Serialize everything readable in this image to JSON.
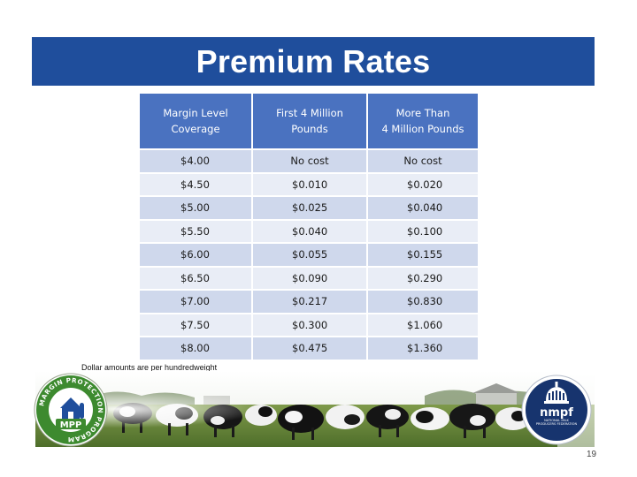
{
  "slide": {
    "title": "Premium Rates",
    "note": "Dollar amounts are per hundredweight",
    "page_number": "19"
  },
  "table": {
    "headers": [
      [
        "Margin Level",
        "Coverage"
      ],
      [
        "First 4 Million",
        "Pounds"
      ],
      [
        "More Than",
        "4 Million Pounds"
      ]
    ],
    "rows": [
      [
        "$4.00",
        "No cost",
        "No cost"
      ],
      [
        "$4.50",
        "$0.010",
        "$0.020"
      ],
      [
        "$5.00",
        "$0.025",
        "$0.040"
      ],
      [
        "$5.50",
        "$0.040",
        "$0.100"
      ],
      [
        "$6.00",
        "$0.055",
        "$0.155"
      ],
      [
        "$6.50",
        "$0.090",
        "$0.290"
      ],
      [
        "$7.00",
        "$0.217",
        "$0.830"
      ],
      [
        "$7.50",
        "$0.300",
        "$1.060"
      ],
      [
        "$8.00",
        "$0.475",
        "$1.360"
      ]
    ]
  },
  "logos": {
    "mpp_ring_text": "MARGIN PROTECTION PROGRAM",
    "mpp_center_text": "MPP",
    "nmpf_text": "nmpf",
    "nmpf_subtext": "NATIONAL MILK PRODUCERS FEDERATION"
  },
  "colors": {
    "title_bar": "#1f4e9c",
    "header_cell": "#4a72c0",
    "row_dark": "#cfd8ec",
    "row_light": "#e9edf6",
    "mpp_green": "#3d8a2f",
    "nmpf_navy": "#17346e"
  }
}
